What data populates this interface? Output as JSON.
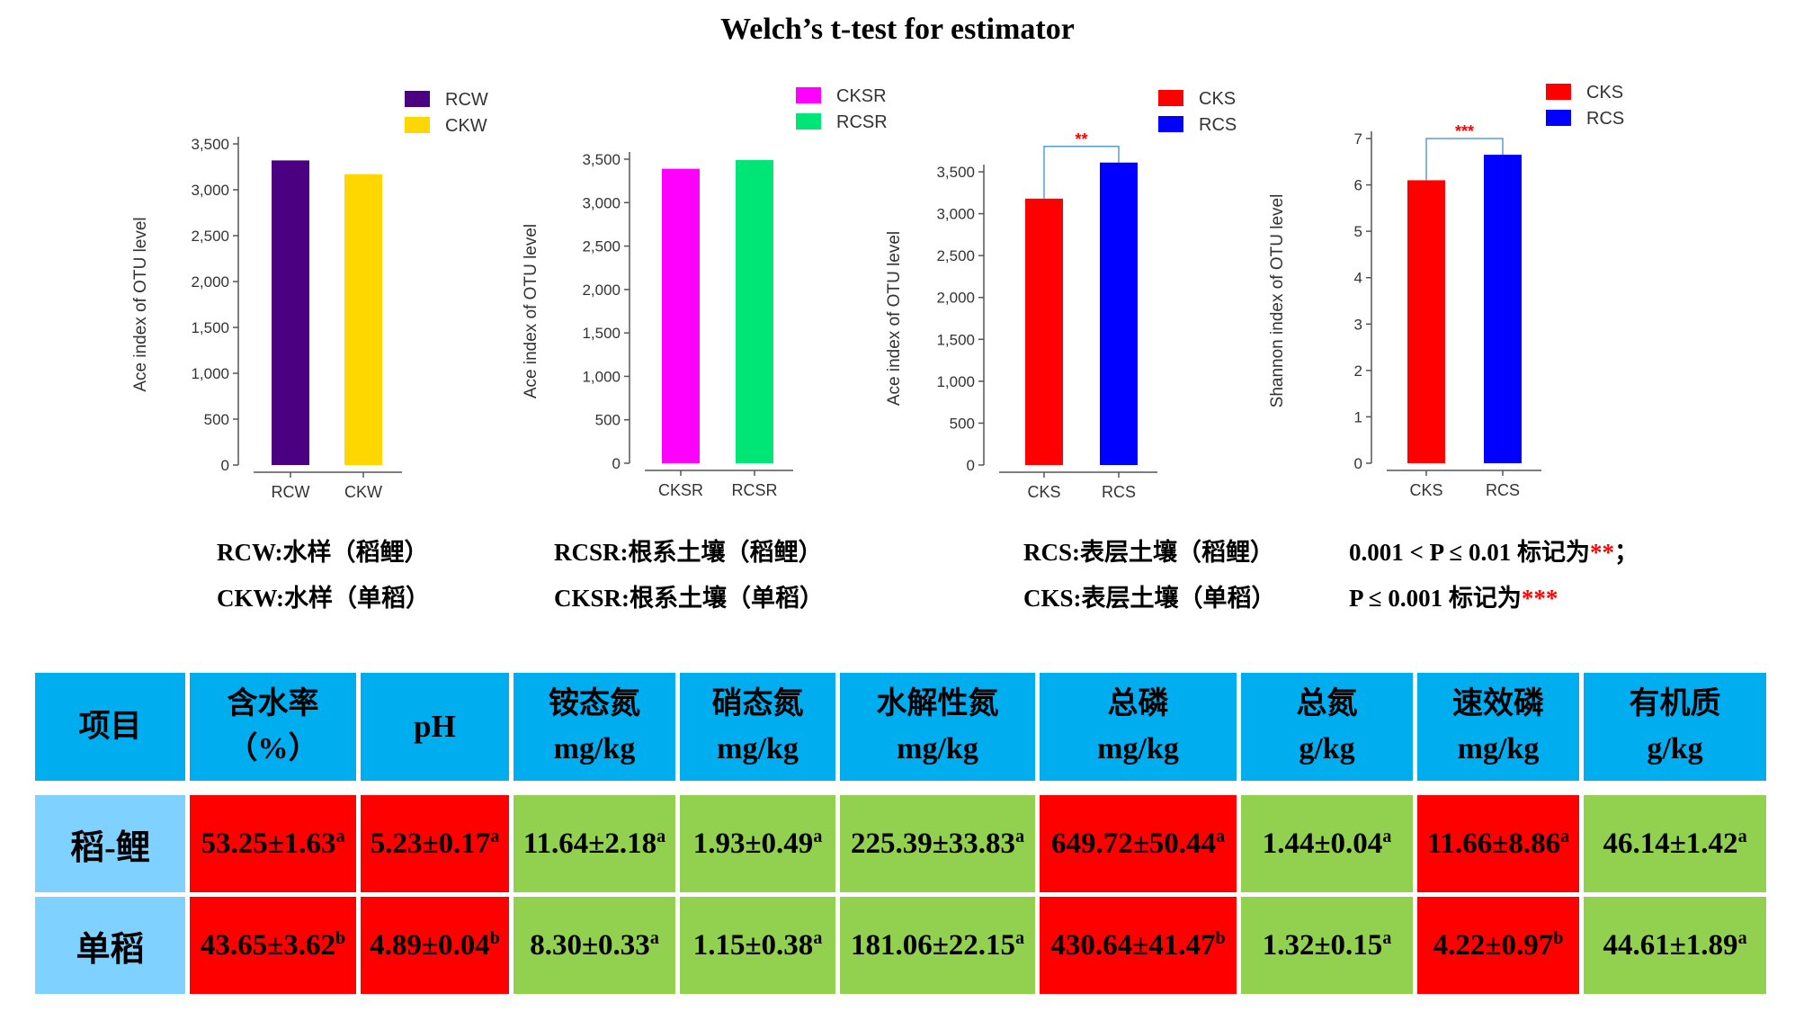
{
  "title": "Welch’s t-test for estimator",
  "chart_data": [
    {
      "type": "bar",
      "categories": [
        "RCW",
        "CKW"
      ],
      "values": [
        3320,
        3170
      ],
      "colors": [
        "#4b0082",
        "#ffd700"
      ],
      "legend": [
        "RCW",
        "CKW"
      ],
      "ylabel": "Ace index of OTU level",
      "ylim": [
        0,
        3500
      ],
      "yticks": [
        0,
        500,
        1000,
        1500,
        2000,
        2500,
        3000,
        3500
      ],
      "ytick_labels": [
        "0",
        "500",
        "1,000",
        "1,500",
        "2,000",
        "2,500",
        "3,000",
        "3,500"
      ],
      "significance": ""
    },
    {
      "type": "bar",
      "categories": [
        "CKSR",
        "RCSR"
      ],
      "values": [
        3390,
        3490
      ],
      "colors": [
        "#ff00ff",
        "#00e676"
      ],
      "legend": [
        "CKSR",
        "RCSR"
      ],
      "ylabel": "Ace index of OTU level",
      "ylim": [
        0,
        3500
      ],
      "yticks": [
        0,
        500,
        1000,
        1500,
        2000,
        2500,
        3000,
        3500
      ],
      "ytick_labels": [
        "0",
        "500",
        "1,000",
        "1,500",
        "2,000",
        "2,500",
        "3,000",
        "3,500"
      ],
      "significance": ""
    },
    {
      "type": "bar",
      "categories": [
        "CKS",
        "RCS"
      ],
      "values": [
        3180,
        3610
      ],
      "colors": [
        "#ff0000",
        "#0000ff"
      ],
      "legend": [
        "CKS",
        "RCS"
      ],
      "ylabel": "Ace index of OTU level",
      "ylim": [
        0,
        3500
      ],
      "yticks": [
        0,
        500,
        1000,
        1500,
        2000,
        2500,
        3000,
        3500
      ],
      "ytick_labels": [
        "0",
        "500",
        "1,000",
        "1,500",
        "2,000",
        "2,500",
        "3,000",
        "3,500"
      ],
      "significance": "**"
    },
    {
      "type": "bar",
      "categories": [
        "CKS",
        "RCS"
      ],
      "values": [
        6.1,
        6.65
      ],
      "colors": [
        "#ff0000",
        "#0000ff"
      ],
      "legend": [
        "CKS",
        "RCS"
      ],
      "ylabel": "Shannon index of OTU level",
      "ylim": [
        0,
        7
      ],
      "yticks": [
        0,
        1,
        2,
        3,
        4,
        5,
        6,
        7
      ],
      "ytick_labels": [
        "0",
        "1",
        "2",
        "3",
        "4",
        "5",
        "6",
        "7"
      ],
      "significance": "***"
    }
  ],
  "notes": {
    "rcw": "RCW:水样（稻鲤）",
    "ckw": "CKW:水样（单稻）",
    "rcsr": "RCSR:根系土壤（稻鲤）",
    "cksr": "CKSR:根系土壤（单稻）",
    "rcs": "RCS:表层土壤（稻鲤）",
    "cks": "CKS:表层土壤（单稻）",
    "p1_text": "0.001 < P ≤ 0.01 标记为",
    "p1_stars": "**",
    "p1_tail": "；",
    "p2_text": "P ≤ 0.001 标记为",
    "p2_stars": "***"
  },
  "table": {
    "headers": [
      {
        "name": "项目",
        "unit": ""
      },
      {
        "name": "含水率",
        "unit": "（%）"
      },
      {
        "name": "pH",
        "unit": ""
      },
      {
        "name": "铵态氮",
        "unit": "mg/kg"
      },
      {
        "name": "硝态氮",
        "unit": "mg/kg"
      },
      {
        "name": "水解性氮",
        "unit": "mg/kg"
      },
      {
        "name": "总磷",
        "unit": "mg/kg"
      },
      {
        "name": "总氮",
        "unit": "g/kg"
      },
      {
        "name": "速效磷",
        "unit": "mg/kg"
      },
      {
        "name": "有机质",
        "unit": "g/kg"
      }
    ],
    "rows": [
      {
        "label": "稻-鲤",
        "cells": [
          {
            "v": "53.25±1.63",
            "s": "a",
            "c": "red"
          },
          {
            "v": "5.23±0.17",
            "s": "a",
            "c": "red"
          },
          {
            "v": "11.64±2.18",
            "s": "a",
            "c": "green"
          },
          {
            "v": "1.93±0.49",
            "s": "a",
            "c": "green"
          },
          {
            "v": "225.39±33.83",
            "s": "a",
            "c": "green"
          },
          {
            "v": "649.72±50.44",
            "s": "a",
            "c": "red"
          },
          {
            "v": "1.44±0.04",
            "s": "a",
            "c": "green"
          },
          {
            "v": "11.66±8.86",
            "s": "a",
            "c": "red"
          },
          {
            "v": "46.14±1.42",
            "s": "a",
            "c": "green"
          }
        ]
      },
      {
        "label": "单稻",
        "cells": [
          {
            "v": "43.65±3.62",
            "s": "b",
            "c": "red"
          },
          {
            "v": "4.89±0.04",
            "s": "b",
            "c": "red"
          },
          {
            "v": "8.30±0.33",
            "s": "a",
            "c": "green"
          },
          {
            "v": "1.15±0.38",
            "s": "a",
            "c": "green"
          },
          {
            "v": "181.06±22.15",
            "s": "a",
            "c": "green"
          },
          {
            "v": "430.64±41.47",
            "s": "b",
            "c": "red"
          },
          {
            "v": "1.32±0.15",
            "s": "a",
            "c": "green"
          },
          {
            "v": "4.22±0.97",
            "s": "b",
            "c": "red"
          },
          {
            "v": "44.61±1.89",
            "s": "a",
            "c": "green"
          }
        ]
      }
    ]
  }
}
